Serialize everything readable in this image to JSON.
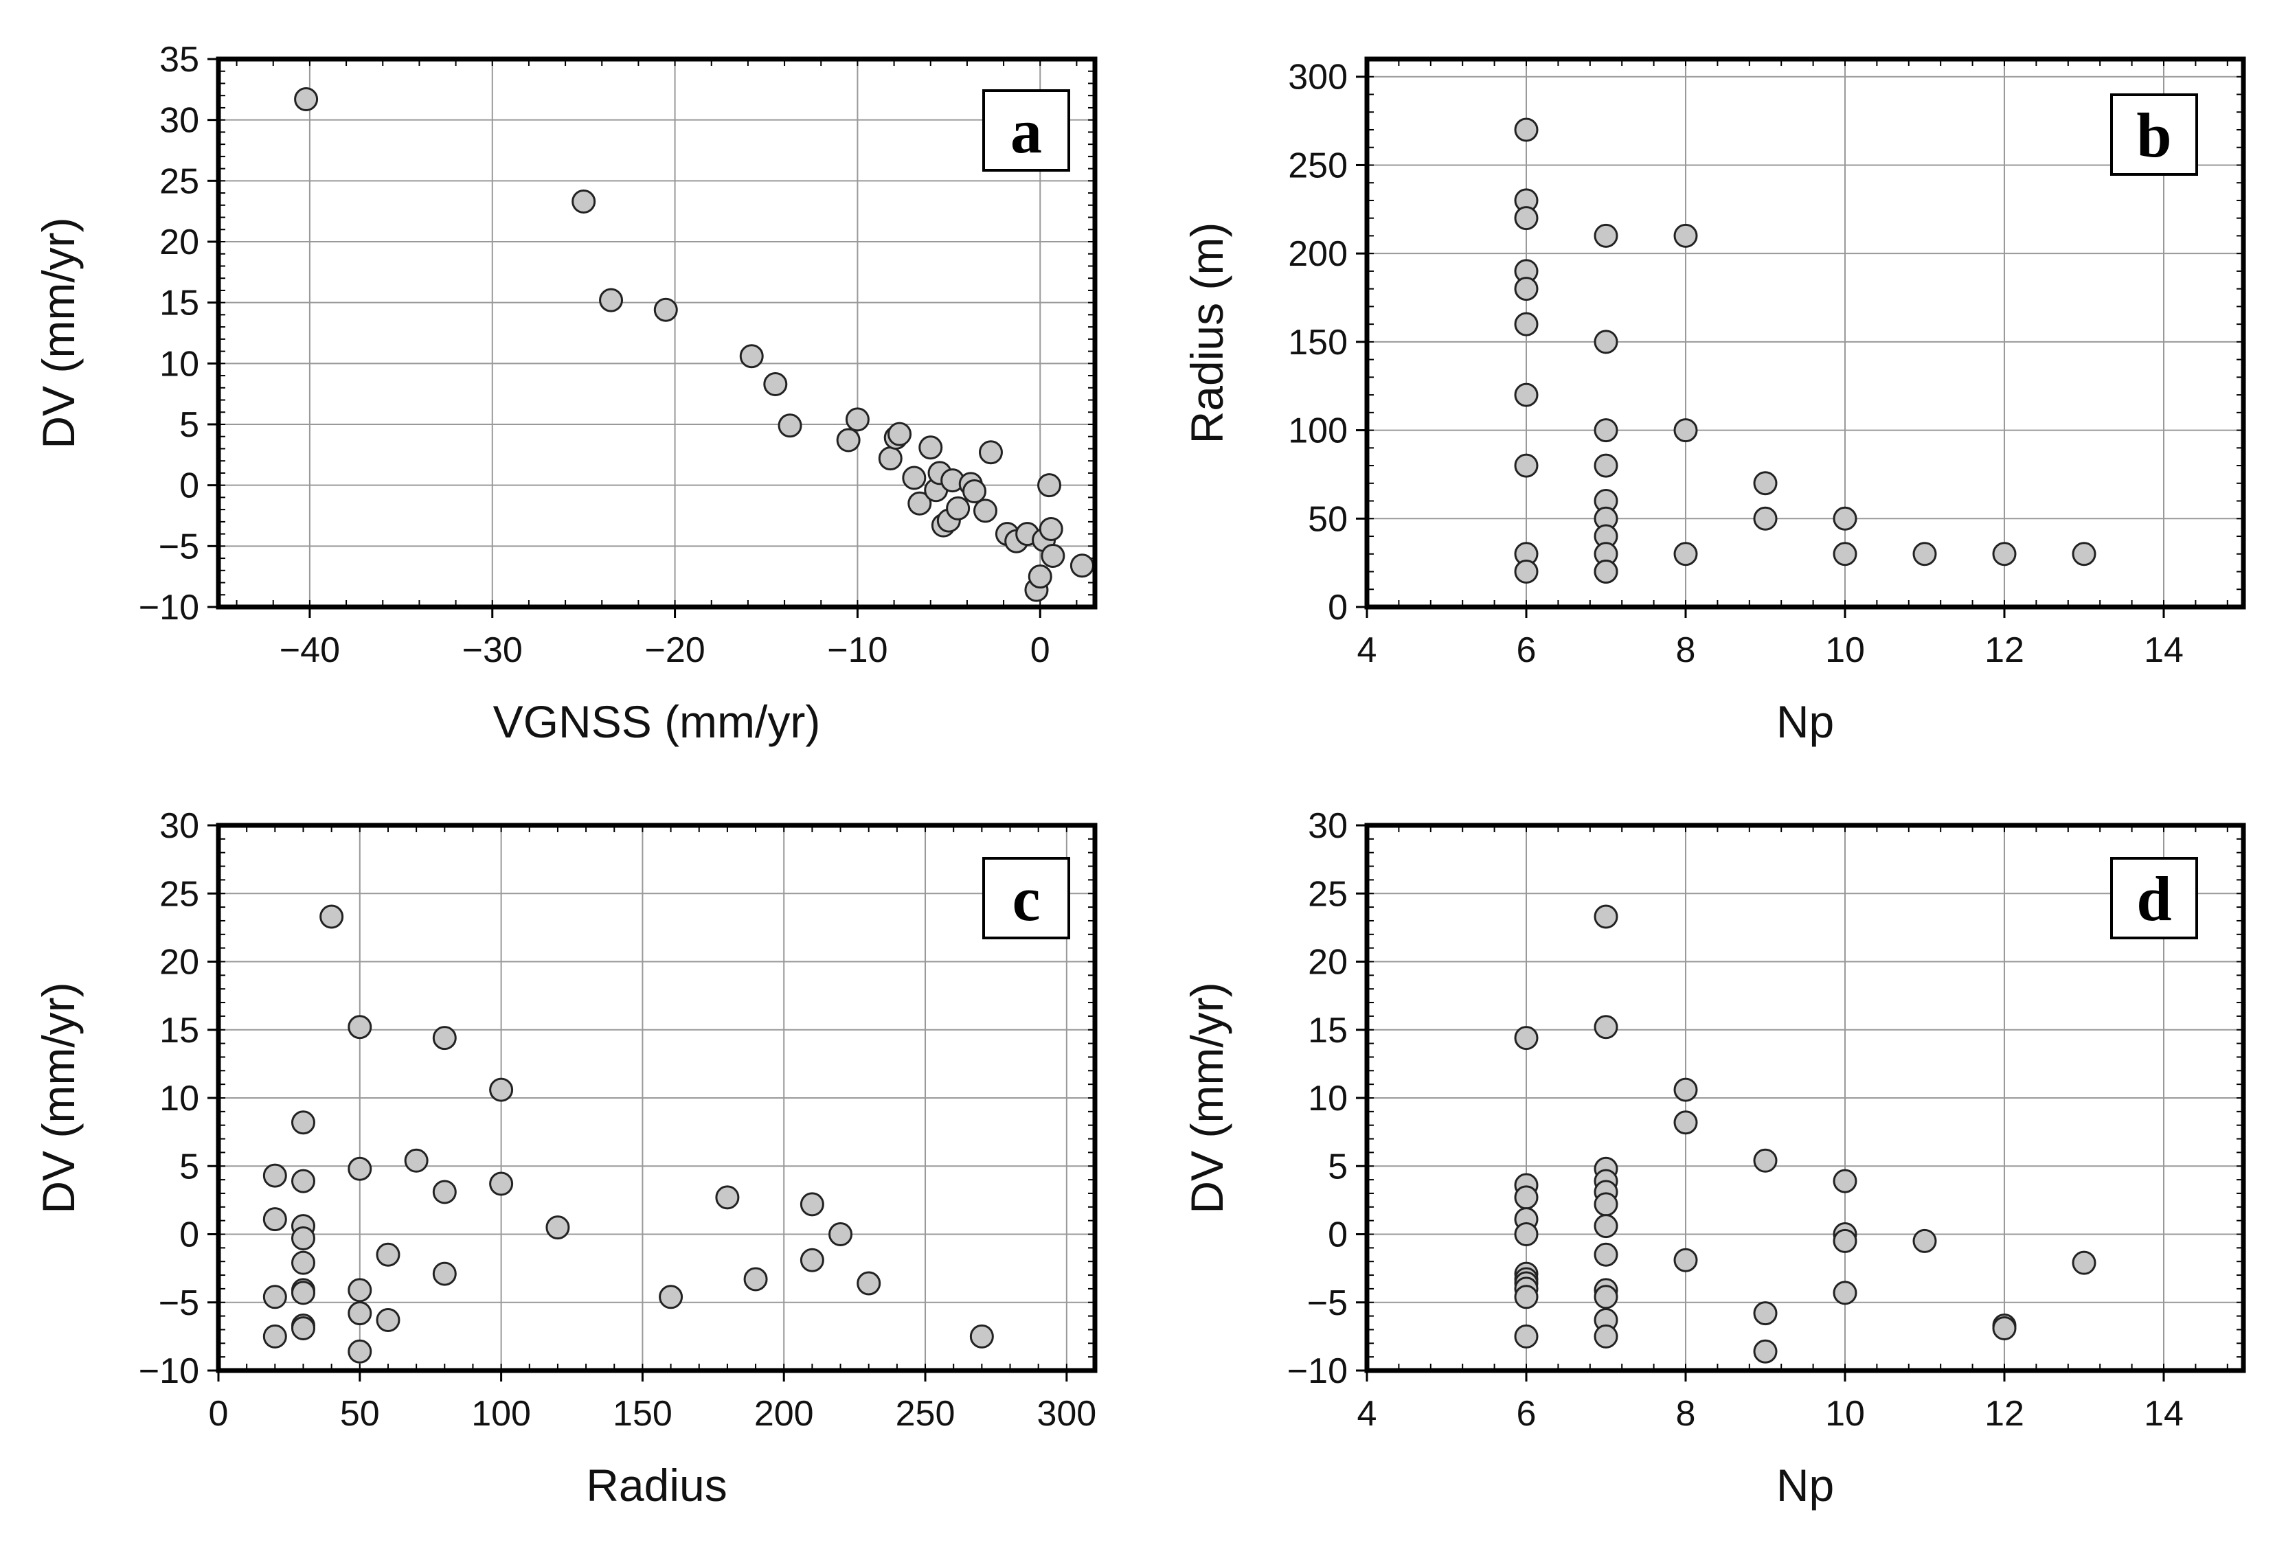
{
  "marker_fill": "#c8c8c8",
  "marker_stroke": "#222222",
  "grid_color": "#999999",
  "chart_data": [
    {
      "type": "scatter",
      "panel_label": "a",
      "xlabel": "VGNSS (mm/yr)",
      "ylabel": "DV (mm/yr)",
      "xlim": [
        -45,
        3
      ],
      "ylim": [
        -10,
        35
      ],
      "xticks": [
        -40,
        -30,
        -20,
        -10,
        0
      ],
      "xtick_labels": [
        "−40",
        "−30",
        "−20",
        "−10",
        "0"
      ],
      "yticks": [
        -10,
        -5,
        0,
        5,
        10,
        15,
        20,
        25,
        30,
        35
      ],
      "ytick_labels": [
        "−10",
        "−5",
        "0",
        "5",
        "10",
        "15",
        "20",
        "25",
        "30",
        "35"
      ],
      "grid": true,
      "x": [
        -40.2,
        -25.0,
        -23.5,
        -20.5,
        -15.8,
        -14.5,
        -13.7,
        -10.5,
        -10.0,
        -8.2,
        -7.9,
        -7.7,
        -6.9,
        -6.6,
        -6.0,
        -5.7,
        -5.5,
        -5.3,
        -5.0,
        -4.8,
        -4.5,
        -3.8,
        -3.6,
        -3.0,
        -2.7,
        -1.8,
        -1.3,
        -0.7,
        -0.2,
        0.0,
        0.2,
        0.5,
        0.6,
        0.7,
        2.3
      ],
      "y": [
        31.7,
        23.3,
        15.2,
        14.4,
        10.6,
        8.3,
        4.9,
        3.7,
        5.4,
        2.2,
        3.9,
        4.2,
        0.6,
        -1.5,
        3.1,
        -0.4,
        1.0,
        -3.3,
        -2.9,
        0.4,
        -1.9,
        0.1,
        -0.5,
        -2.1,
        2.7,
        -4.0,
        -4.6,
        -4.0,
        -8.6,
        -7.5,
        -4.5,
        0.0,
        -3.6,
        -5.8,
        -6.6
      ]
    },
    {
      "type": "scatter",
      "panel_label": "b",
      "xlabel": "Np",
      "ylabel": "Radius (m)",
      "xlim": [
        4,
        15
      ],
      "ylim": [
        0,
        310
      ],
      "xticks": [
        4,
        6,
        8,
        10,
        12,
        14
      ],
      "xtick_labels": [
        "4",
        "6",
        "8",
        "10",
        "12",
        "14"
      ],
      "yticks": [
        0,
        50,
        100,
        150,
        200,
        250,
        300
      ],
      "ytick_labels": [
        "0",
        "50",
        "100",
        "150",
        "200",
        "250",
        "300"
      ],
      "grid": true,
      "x": [
        6,
        6,
        6,
        6,
        6,
        6,
        6,
        6,
        6,
        6,
        7,
        7,
        7,
        7,
        7,
        7,
        7,
        7,
        7,
        7,
        8,
        8,
        8,
        9,
        9,
        10,
        10,
        11,
        12,
        13
      ],
      "y": [
        270,
        230,
        220,
        190,
        180,
        160,
        120,
        80,
        30,
        20,
        210,
        150,
        100,
        80,
        60,
        50,
        40,
        30,
        20,
        20,
        210,
        100,
        30,
        70,
        50,
        50,
        30,
        30,
        30,
        30
      ]
    },
    {
      "type": "scatter",
      "panel_label": "c",
      "xlabel": "Radius",
      "ylabel": "DV (mm/yr)",
      "xlim": [
        0,
        310
      ],
      "ylim": [
        -10,
        30
      ],
      "xticks": [
        0,
        50,
        100,
        150,
        200,
        250,
        300
      ],
      "xtick_labels": [
        "0",
        "50",
        "100",
        "150",
        "200",
        "250",
        "300"
      ],
      "yticks": [
        -10,
        -5,
        0,
        5,
        10,
        15,
        20,
        25,
        30
      ],
      "ytick_labels": [
        "−10",
        "−5",
        "0",
        "5",
        "10",
        "15",
        "20",
        "25",
        "30"
      ],
      "grid": true,
      "x": [
        20,
        20,
        20,
        20,
        30,
        30,
        30,
        30,
        30,
        30,
        30,
        30,
        30,
        40,
        50,
        50,
        50,
        50,
        50,
        60,
        60,
        70,
        80,
        80,
        80,
        100,
        100,
        120,
        160,
        180,
        190,
        210,
        210,
        220,
        230,
        270
      ],
      "y": [
        4.3,
        1.1,
        -4.6,
        -7.5,
        8.2,
        3.9,
        0.6,
        -0.3,
        -2.1,
        -4.1,
        -4.3,
        -6.7,
        -6.9,
        23.3,
        15.2,
        4.8,
        -4.1,
        -5.8,
        -8.6,
        -1.5,
        -6.3,
        5.4,
        14.4,
        3.1,
        -2.9,
        10.6,
        3.7,
        0.5,
        -4.6,
        2.7,
        -3.3,
        2.2,
        -1.9,
        0.0,
        -3.6,
        -7.5
      ]
    },
    {
      "type": "scatter",
      "panel_label": "d",
      "xlabel": "Np",
      "ylabel": "DV (mm/yr)",
      "xlim": [
        4,
        15
      ],
      "ylim": [
        -10,
        30
      ],
      "xticks": [
        4,
        6,
        8,
        10,
        12,
        14
      ],
      "xtick_labels": [
        "4",
        "6",
        "8",
        "10",
        "12",
        "14"
      ],
      "yticks": [
        -10,
        -5,
        0,
        5,
        10,
        15,
        20,
        25,
        30
      ],
      "ytick_labels": [
        "−10",
        "−5",
        "0",
        "5",
        "10",
        "15",
        "20",
        "25",
        "30"
      ],
      "grid": true,
      "x": [
        6,
        6,
        6,
        6,
        6,
        6,
        6,
        6,
        6,
        6,
        6,
        7,
        7,
        7,
        7,
        7,
        7,
        7,
        7,
        7,
        7,
        7,
        7,
        8,
        8,
        8,
        9,
        9,
        9,
        10,
        10,
        10,
        10,
        11,
        12,
        12,
        13
      ],
      "y": [
        14.4,
        3.6,
        2.7,
        1.1,
        0.0,
        -2.9,
        -3.3,
        -3.6,
        -4.0,
        -4.6,
        -7.5,
        23.3,
        15.2,
        4.8,
        3.9,
        3.1,
        2.2,
        0.6,
        -1.5,
        -4.1,
        -4.6,
        -6.3,
        -7.5,
        10.6,
        8.2,
        -1.9,
        5.4,
        -5.8,
        -8.6,
        3.9,
        0.0,
        -0.5,
        -4.3,
        -0.5,
        -6.7,
        -6.9,
        -2.1
      ]
    }
  ]
}
